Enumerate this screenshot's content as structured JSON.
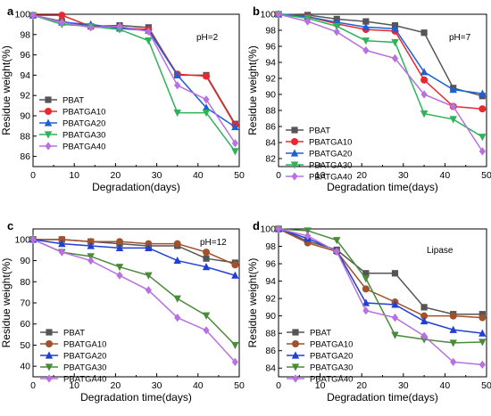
{
  "colors": {
    "PBAT": "#555555",
    "PBATGA10": "#e8282e",
    "PBATGA20": "#1f5fd6",
    "PBATGA30": "#2fb35a",
    "PBATGA40": "#b970e0"
  },
  "markers": {
    "a": [
      "square",
      "circle",
      "triangle-up",
      "triangle-down",
      "diamond"
    ],
    "b": [
      "square",
      "circle",
      "triangle-up",
      "triangle-down",
      "diamond"
    ],
    "c": [
      "square",
      "circle",
      "triangle-up",
      "triangle-down",
      "diamond"
    ],
    "d": [
      "square",
      "circle",
      "triangle-up",
      "triangle-down",
      "diamond"
    ]
  },
  "chart_data": [
    {
      "panel": "a",
      "type": "line",
      "annotation": "pH=2",
      "xlabel": "Degradation(days)",
      "ylabel": "Residue weight(%)",
      "xlim": [
        0,
        50
      ],
      "ylim": [
        85,
        100
      ],
      "xticks": [
        0,
        10,
        20,
        30,
        40,
        50
      ],
      "yticks": [
        86,
        88,
        90,
        92,
        94,
        96,
        98,
        100
      ],
      "legend_position": "lower-left",
      "x": [
        0,
        7,
        14,
        21,
        28,
        35,
        42,
        49
      ],
      "series": [
        {
          "name": "PBAT",
          "color": "#555555",
          "marker": "square",
          "values": [
            99.9,
            99.3,
            98.8,
            98.9,
            98.7,
            94.0,
            94.0,
            89.2
          ]
        },
        {
          "name": "PBATGA10",
          "color": "#e8282e",
          "marker": "circle",
          "values": [
            99.9,
            99.9,
            98.8,
            98.7,
            98.5,
            94.1,
            93.9,
            89.1
          ]
        },
        {
          "name": "PBATGA20",
          "color": "#1f5fd6",
          "marker": "triangle-up",
          "values": [
            99.9,
            99.2,
            99.0,
            98.6,
            98.4,
            94.0,
            90.8,
            88.9
          ]
        },
        {
          "name": "PBATGA30",
          "color": "#2fb35a",
          "marker": "triangle-down",
          "values": [
            99.9,
            99.0,
            98.8,
            98.5,
            97.4,
            90.3,
            90.3,
            86.5
          ]
        },
        {
          "name": "PBATGA40",
          "color": "#b970e0",
          "marker": "diamond",
          "values": [
            99.9,
            99.2,
            98.7,
            98.8,
            98.3,
            93.0,
            91.6,
            87.3
          ]
        }
      ]
    },
    {
      "panel": "b",
      "type": "line",
      "annotation": "pH=7",
      "xlabel": "Degradation time(days)",
      "ylabel": "Residue weight(%)",
      "xlim": [
        0,
        50
      ],
      "ylim": [
        81,
        100
      ],
      "xticks": [
        0,
        10,
        20,
        30,
        40,
        50
      ],
      "yticks": [
        82,
        84,
        86,
        88,
        90,
        92,
        94,
        96,
        98,
        100
      ],
      "legend_position": "lower-left",
      "x": [
        0,
        7,
        14,
        21,
        28,
        35,
        42,
        49
      ],
      "series": [
        {
          "name": "PBAT",
          "color": "#555555",
          "marker": "square",
          "values": [
            100.0,
            99.9,
            99.4,
            99.1,
            98.6,
            97.7,
            90.8,
            89.8
          ]
        },
        {
          "name": "PBATGA10",
          "color": "#e8282e",
          "marker": "circle",
          "values": [
            100.0,
            99.7,
            98.8,
            98.1,
            97.9,
            91.8,
            88.5,
            88.2
          ]
        },
        {
          "name": "PBATGA20",
          "color": "#1f5fd6",
          "marker": "triangle-up",
          "values": [
            100.0,
            99.7,
            99.0,
            98.4,
            98.2,
            92.8,
            90.6,
            90.1
          ]
        },
        {
          "name": "PBATGA30",
          "color": "#2fb35a",
          "marker": "triangle-down",
          "values": [
            100.0,
            99.5,
            98.5,
            96.7,
            96.5,
            87.6,
            86.9,
            84.7
          ]
        },
        {
          "name": "PBATGA40",
          "color": "#b970e0",
          "marker": "diamond",
          "values": [
            100.0,
            99.1,
            97.8,
            95.5,
            94.5,
            90.0,
            88.5,
            82.9
          ]
        }
      ]
    },
    {
      "panel": "c",
      "type": "line",
      "annotation": "pH=12",
      "xlabel": "Degradation time(days)",
      "ylabel": "Residue weight(%)",
      "xlim": [
        0,
        50
      ],
      "ylim": [
        35,
        105
      ],
      "xticks": [
        0,
        10,
        20,
        30,
        40,
        50
      ],
      "yticks": [
        40,
        50,
        60,
        70,
        80,
        90,
        100
      ],
      "legend_position": "lower-left",
      "x": [
        0,
        7,
        14,
        21,
        28,
        35,
        42,
        49
      ],
      "series": [
        {
          "name": "PBAT",
          "color": "#555555",
          "marker": "square",
          "values": [
            100,
            100,
            99,
            98,
            97,
            97,
            91,
            89
          ]
        },
        {
          "name": "PBATGA10",
          "color": "#a0522d",
          "marker": "circle",
          "values": [
            100,
            100,
            99,
            99,
            98,
            98,
            94,
            88
          ]
        },
        {
          "name": "PBATGA20",
          "color": "#1f3fd6",
          "marker": "triangle-up",
          "values": [
            100,
            98,
            97,
            96,
            96,
            90,
            87,
            83
          ]
        },
        {
          "name": "PBATGA30",
          "color": "#4a8a3a",
          "marker": "triangle-down",
          "values": [
            100,
            94,
            92,
            87,
            83,
            72,
            64,
            50
          ]
        },
        {
          "name": "PBATGA40",
          "color": "#b970e0",
          "marker": "diamond",
          "values": [
            100,
            94,
            90,
            83,
            76,
            63,
            57,
            42
          ]
        }
      ]
    },
    {
      "panel": "d",
      "type": "line",
      "annotation": "Lipase",
      "xlabel": "Degradation time(days)",
      "ylabel": "Residue weight(%)",
      "xlim": [
        0,
        50
      ],
      "ylim": [
        83,
        100
      ],
      "xticks": [
        0,
        10,
        20,
        30,
        40,
        50
      ],
      "yticks": [
        84,
        86,
        88,
        90,
        92,
        94,
        96,
        98,
        100
      ],
      "legend_position": "lower-left",
      "x": [
        0,
        7,
        14,
        21,
        28,
        35,
        42,
        49
      ],
      "series": [
        {
          "name": "PBAT",
          "color": "#555555",
          "marker": "square",
          "values": [
            100.0,
            98.6,
            97.6,
            94.9,
            94.9,
            91.0,
            90.2,
            90.2
          ]
        },
        {
          "name": "PBATGA10",
          "color": "#a0522d",
          "marker": "circle",
          "values": [
            100.0,
            98.4,
            97.4,
            93.1,
            91.6,
            90.0,
            90.0,
            89.8
          ]
        },
        {
          "name": "PBATGA20",
          "color": "#1f3fd6",
          "marker": "triangle-up",
          "values": [
            100.0,
            98.9,
            97.5,
            91.5,
            91.3,
            89.4,
            88.4,
            88.0
          ]
        },
        {
          "name": "PBATGA30",
          "color": "#4a8a3a",
          "marker": "triangle-down",
          "values": [
            100.0,
            99.8,
            98.7,
            94.3,
            87.8,
            87.3,
            86.9,
            87.0
          ]
        },
        {
          "name": "PBATGA40",
          "color": "#b970e0",
          "marker": "diamond",
          "values": [
            100.0,
            99.2,
            97.4,
            90.6,
            89.8,
            87.7,
            84.7,
            84.4
          ]
        }
      ]
    }
  ]
}
